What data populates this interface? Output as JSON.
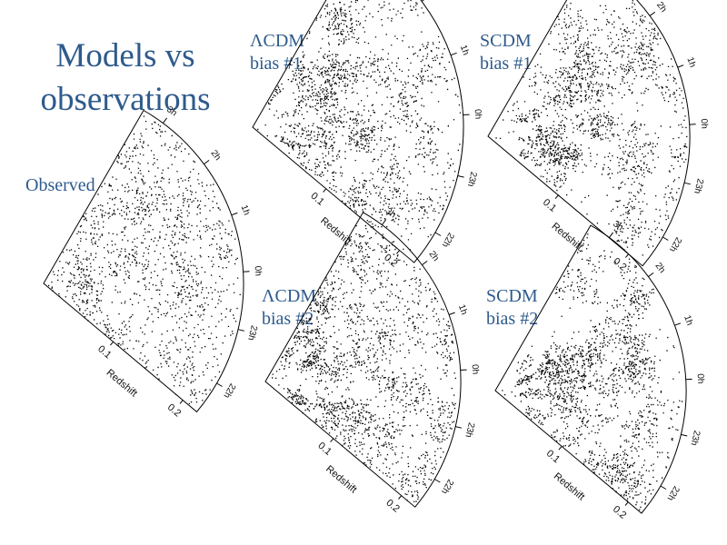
{
  "slide": {
    "title_line1": "Models vs",
    "title_line2": "observations"
  },
  "panels": [
    {
      "key": "observed",
      "label_line1": "Observed",
      "label_line2": "",
      "density": 0.55,
      "clustering": 0.5
    },
    {
      "key": "lcdm1",
      "label_line1": "ΛCDM",
      "label_line2": "bias #1",
      "density": 0.75,
      "clustering": 0.8
    },
    {
      "key": "scdm1",
      "label_line1": "SCDM",
      "label_line2": "bias #1",
      "density": 0.7,
      "clustering": 0.85
    },
    {
      "key": "lcdm2",
      "label_line1": "ΛCDM",
      "label_line2": "bias #2",
      "density": 0.8,
      "clustering": 0.7
    },
    {
      "key": "scdm2",
      "label_line1": "SCDM",
      "label_line2": "bias #2",
      "density": 0.72,
      "clustering": 0.9
    }
  ],
  "axes": {
    "ra_labels": [
      "3h",
      "2h",
      "1h",
      "0h",
      "23h",
      "22h"
    ],
    "z_ticks": [
      "0.1",
      "0.2"
    ],
    "z_label": "Redshift"
  },
  "colors": {
    "title": "#2e5b8c",
    "points": "#000000"
  }
}
